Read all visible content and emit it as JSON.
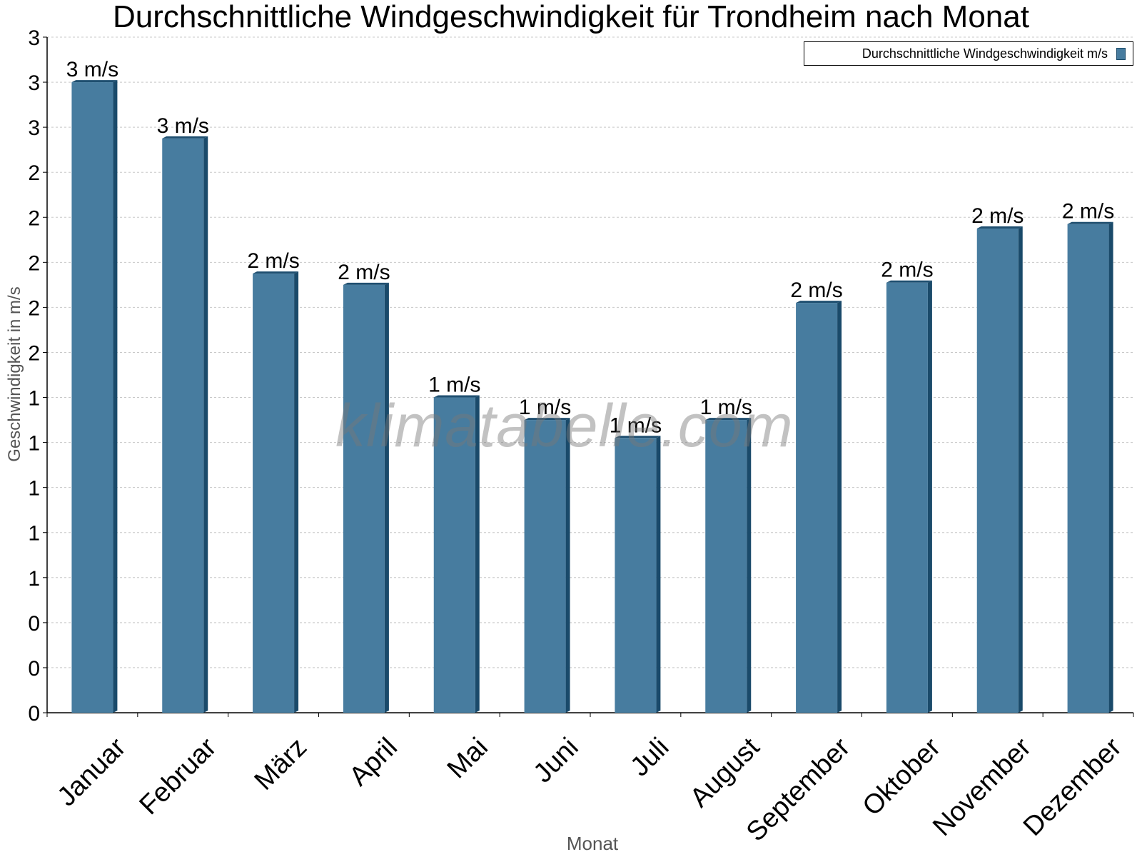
{
  "chart_data": {
    "type": "bar",
    "title": "Durchschnittliche Windgeschwindigkeit für Trondheim nach Monat",
    "xlabel": "Monat",
    "ylabel": "Geschwindigkeit in m/s",
    "categories": [
      "Januar",
      "Februar",
      "März",
      "April",
      "Mai",
      "Juni",
      "Juli",
      "August",
      "September",
      "Oktober",
      "November",
      "Dezember"
    ],
    "series": [
      {
        "name": "Durchschnittliche Windgeschwindigkeit m/s",
        "values": [
          2.8,
          2.55,
          1.95,
          1.9,
          1.4,
          1.3,
          1.22,
          1.3,
          1.82,
          1.91,
          2.15,
          2.17
        ],
        "data_labels": [
          "3 m/s",
          "3 m/s",
          "2 m/s",
          "2 m/s",
          "1 m/s",
          "1 m/s",
          "1 m/s",
          "1 m/s",
          "2 m/s",
          "2 m/s",
          "2 m/s",
          "2 m/s"
        ],
        "color": "#477c9f"
      }
    ],
    "ylim": [
      0,
      3.0
    ],
    "yticks": [
      0,
      0.2,
      0.4,
      0.6,
      0.8,
      1.0,
      1.2,
      1.4,
      1.6,
      1.8,
      2.0,
      2.2,
      2.4,
      2.6,
      2.8,
      3.0
    ],
    "ytick_labels": [
      "0",
      "0",
      "0",
      "1",
      "1",
      "1",
      "1",
      "1",
      "2",
      "2",
      "2",
      "2",
      "2",
      "3",
      "3",
      "3"
    ],
    "grid": true,
    "legend_position": "top-right",
    "colors": {
      "bar": "#477c9f",
      "bar_top": "#1f4f70",
      "bar_side": "#1a4a6a",
      "grid": "#c8c8c8",
      "axis_label": "#555555"
    }
  },
  "watermark": "klimatabelle.com"
}
